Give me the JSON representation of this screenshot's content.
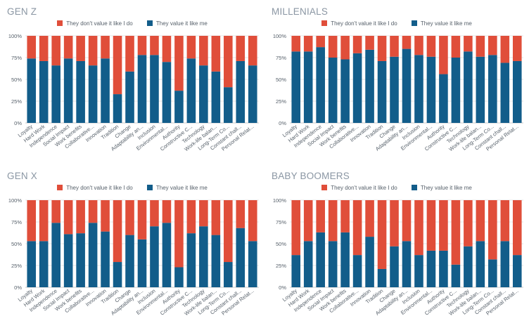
{
  "colors": {
    "dont_value": "#e04e3a",
    "value": "#125d8a",
    "grid": "#e6e6e6",
    "text": "#555f69",
    "title": "#8a96a3"
  },
  "chart_data": [
    {
      "type": "bar",
      "stacked": true,
      "title": "GEN Z",
      "ylim": [
        0,
        100
      ],
      "yticks": [
        "0%",
        "25%",
        "50%",
        "75%",
        "100%"
      ],
      "legend": "top-center",
      "categories": [
        "Loyalty",
        "Hard Work",
        "Independence",
        "Social Impact",
        "Work benefits",
        "Collaborative...",
        "Innovation",
        "Tradition",
        "Change",
        "Adaptability an...",
        "Inclusion",
        "Environmental...",
        "Authority",
        "Constructive C...",
        "Technology",
        "Work-life balan...",
        "Long-Term Co...",
        "Constant chall...",
        "Personal Relat..."
      ],
      "series": [
        {
          "name": "They don't value it like I do",
          "values": [
            26,
            29,
            34,
            26,
            29,
            34,
            26,
            67,
            41,
            22,
            22,
            30,
            63,
            26,
            34,
            41,
            59,
            29,
            34
          ]
        },
        {
          "name": "They value it like me",
          "values": [
            74,
            71,
            66,
            74,
            71,
            66,
            74,
            33,
            59,
            78,
            78,
            70,
            37,
            74,
            66,
            59,
            41,
            71,
            66
          ]
        }
      ]
    },
    {
      "type": "bar",
      "stacked": true,
      "title": "MILLENIALS",
      "ylim": [
        0,
        100
      ],
      "yticks": [
        "0%",
        "25%",
        "50%",
        "75%",
        "100%"
      ],
      "legend": "top-center",
      "categories": [
        "Loyalty",
        "Hard Work",
        "Independence",
        "Social Impact",
        "Work benefits",
        "Collaborative...",
        "Innovation",
        "Tradition",
        "Change",
        "Adaptability an...",
        "Inclusion",
        "Environmental...",
        "Authority",
        "Constructive C...",
        "Technology",
        "Work-life balan...",
        "Long-Term Co...",
        "Constant chall...",
        "Personal Relat..."
      ],
      "series": [
        {
          "name": "They don't value it like I do",
          "values": [
            18,
            18,
            13,
            25,
            27,
            20,
            16,
            29,
            24,
            15,
            22,
            24,
            44,
            25,
            18,
            24,
            22,
            31,
            29
          ]
        },
        {
          "name": "They value it like me",
          "values": [
            82,
            82,
            87,
            75,
            73,
            80,
            84,
            71,
            76,
            85,
            78,
            76,
            56,
            75,
            82,
            76,
            78,
            69,
            71
          ]
        }
      ]
    },
    {
      "type": "bar",
      "stacked": true,
      "title": "GEN X",
      "ylim": [
        0,
        100
      ],
      "yticks": [
        "0%",
        "25%",
        "50%",
        "75%",
        "100%"
      ],
      "legend": "top-center",
      "categories": [
        "Loyalty",
        "Hard Work",
        "Independence",
        "Social Impact",
        "Work benefits",
        "Collaborative...",
        "Innovation",
        "Tradition",
        "Change",
        "Adaptability an...",
        "Inclusion",
        "Environmental...",
        "Authority",
        "Constructive C...",
        "Technology",
        "Work-life balan...",
        "Long-Term Co...",
        "Constant chall...",
        "Personal Relat..."
      ],
      "series": [
        {
          "name": "They don't value it like I do",
          "values": [
            47,
            47,
            26,
            39,
            38,
            26,
            36,
            71,
            40,
            45,
            30,
            26,
            77,
            38,
            30,
            40,
            71,
            32,
            47
          ]
        },
        {
          "name": "They value it like me",
          "values": [
            53,
            53,
            74,
            61,
            62,
            74,
            64,
            29,
            60,
            55,
            70,
            74,
            23,
            62,
            70,
            60,
            29,
            68,
            53
          ]
        }
      ]
    },
    {
      "type": "bar",
      "stacked": true,
      "title": "BABY BOOMERS",
      "ylim": [
        0,
        100
      ],
      "yticks": [
        "0%",
        "25%",
        "50%",
        "75%",
        "100%"
      ],
      "legend": "top-center",
      "categories": [
        "Loyalty",
        "Hard Work",
        "Independence",
        "Social Impact",
        "Work benefits",
        "Collaborative...",
        "Innovation",
        "Tradition",
        "Change",
        "Adaptability an...",
        "Inclusion",
        "Environmental...",
        "Authority",
        "Constructive C...",
        "Technology",
        "Work-life balan...",
        "Long-Term Co...",
        "Constant chall...",
        "Personal Relat..."
      ],
      "series": [
        {
          "name": "They don't value it like I do",
          "values": [
            63,
            47,
            37,
            47,
            37,
            63,
            42,
            79,
            53,
            47,
            63,
            58,
            58,
            74,
            53,
            47,
            68,
            47,
            63
          ]
        },
        {
          "name": "They value it like me",
          "values": [
            37,
            53,
            63,
            53,
            63,
            37,
            58,
            21,
            47,
            53,
            37,
            42,
            42,
            26,
            47,
            53,
            32,
            53,
            37
          ]
        }
      ]
    }
  ]
}
